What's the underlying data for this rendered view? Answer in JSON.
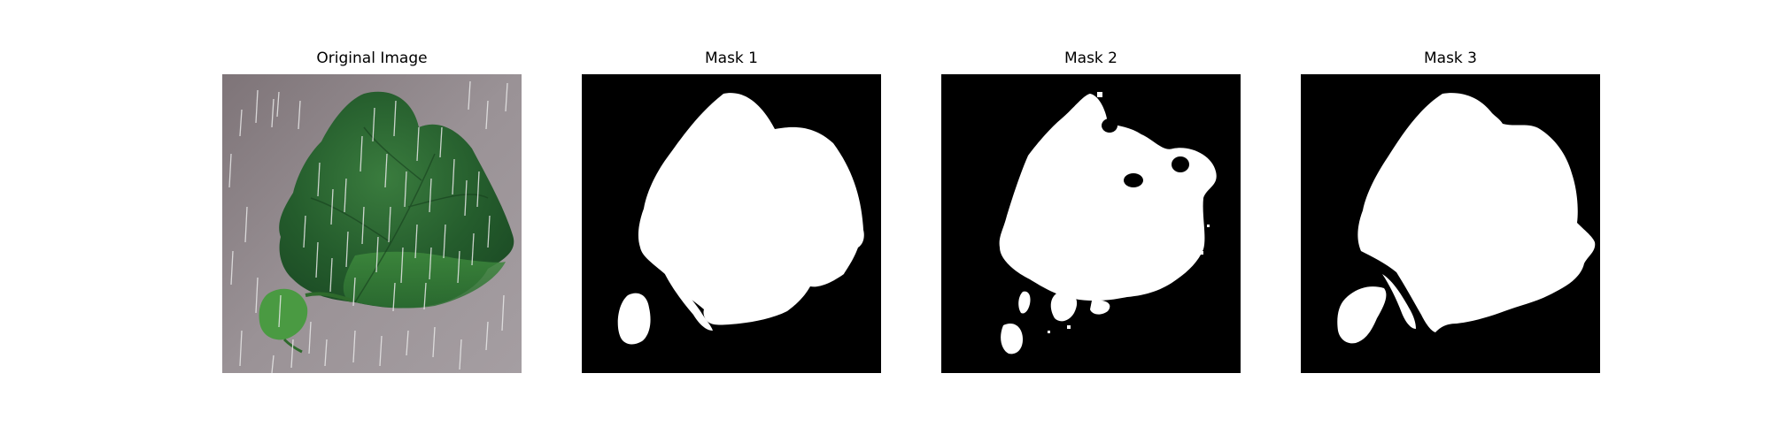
{
  "figure": {
    "background": "#ffffff",
    "panels": [
      {
        "id": "original",
        "title": "Original Image"
      },
      {
        "id": "mask-1",
        "title": "Mask 1"
      },
      {
        "id": "mask-2",
        "title": "Mask 2"
      },
      {
        "id": "mask-3",
        "title": "Mask 3"
      }
    ]
  },
  "colors": {
    "mask_background": "#000000",
    "mask_foreground": "#ffffff",
    "photo_background": "#8f878c",
    "leaf_dark": "#1f5a2a",
    "leaf_mid": "#2f7a3a",
    "leaf_light": "#5aa14a",
    "rain": "#e8e8e8"
  }
}
